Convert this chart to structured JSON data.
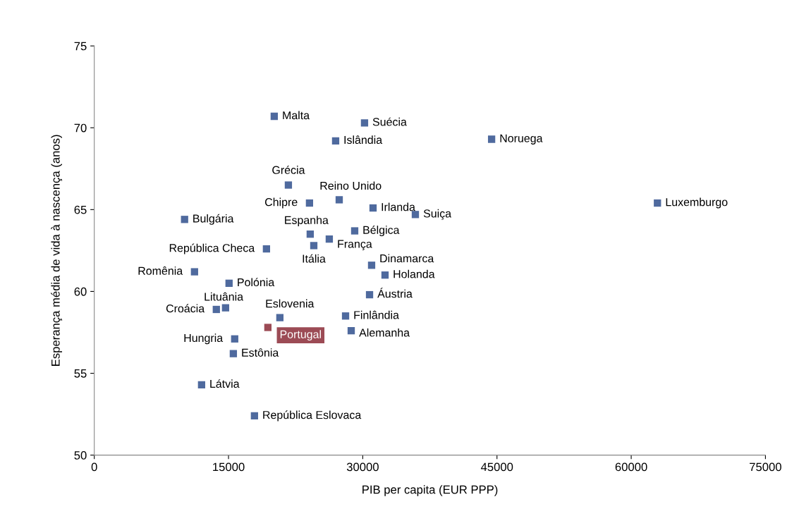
{
  "chart_data": {
    "type": "scatter",
    "xlabel": "PIB per capita (EUR PPP)",
    "ylabel": "Esperança média de vida à nascença (anos)",
    "x": [
      20110,
      30200,
      26970,
      44400,
      21690,
      27370,
      24050,
      31150,
      35880,
      62930,
      10090,
      24130,
      29100,
      26260,
      24530,
      19240,
      30990,
      32490,
      11200,
      15060,
      30760,
      14670,
      13640,
      20740,
      28080,
      19400,
      28710,
      15690,
      15540,
      11990,
      17900
    ],
    "values": [
      70.7,
      70.3,
      69.2,
      69.3,
      66.5,
      65.6,
      65.4,
      65.1,
      64.7,
      65.4,
      64.4,
      63.5,
      63.7,
      63.2,
      62.8,
      62.6,
      61.6,
      61.0,
      61.2,
      60.5,
      59.8,
      59.0,
      58.9,
      58.4,
      58.5,
      57.8,
      57.6,
      57.1,
      56.2,
      54.3,
      52.4
    ],
    "colors": [
      "#4f6a9e",
      "#4f6a9e",
      "#4f6a9e",
      "#4f6a9e",
      "#4f6a9e",
      "#4f6a9e",
      "#4f6a9e",
      "#4f6a9e",
      "#4f6a9e",
      "#4f6a9e",
      "#4f6a9e",
      "#4f6a9e",
      "#4f6a9e",
      "#4f6a9e",
      "#4f6a9e",
      "#4f6a9e",
      "#4f6a9e",
      "#4f6a9e",
      "#4f6a9e",
      "#4f6a9e",
      "#4f6a9e",
      "#4f6a9e",
      "#4f6a9e",
      "#4f6a9e",
      "#4f6a9e",
      "#9c4b55",
      "#4f6a9e",
      "#4f6a9e",
      "#4f6a9e",
      "#4f6a9e",
      "#4f6a9e"
    ],
    "annotations": [
      {
        "text": "Malta",
        "x": 20110,
        "y": 70.7
      },
      {
        "text": "Suécia",
        "x": 30200,
        "y": 70.3
      },
      {
        "text": "Islândia",
        "x": 26970,
        "y": 69.2
      },
      {
        "text": "Noruega",
        "x": 44400,
        "y": 69.3
      },
      {
        "text": "Grécia",
        "x": 21690,
        "y": 66.5
      },
      {
        "text": "Reino Unido",
        "x": 27370,
        "y": 65.6
      },
      {
        "text": "Chipre",
        "x": 24050,
        "y": 65.4
      },
      {
        "text": "Irlanda",
        "x": 31150,
        "y": 65.1
      },
      {
        "text": "Suiça",
        "x": 35880,
        "y": 64.7
      },
      {
        "text": "Luxemburgo",
        "x": 62930,
        "y": 65.4
      },
      {
        "text": "Bulgária",
        "x": 10090,
        "y": 64.4
      },
      {
        "text": "Espanha",
        "x": 24130,
        "y": 63.5
      },
      {
        "text": "Bélgica",
        "x": 29100,
        "y": 63.7
      },
      {
        "text": "França",
        "x": 26260,
        "y": 63.2
      },
      {
        "text": "Itália",
        "x": 24530,
        "y": 62.8
      },
      {
        "text": "República Checa",
        "x": 19240,
        "y": 62.6
      },
      {
        "text": "Dinamarca",
        "x": 30990,
        "y": 61.6
      },
      {
        "text": "Holanda",
        "x": 32490,
        "y": 61.0
      },
      {
        "text": "Romênia",
        "x": 11200,
        "y": 61.2
      },
      {
        "text": "Polónia",
        "x": 15060,
        "y": 60.5
      },
      {
        "text": "Áustria",
        "x": 30760,
        "y": 59.8
      },
      {
        "text": "Lituânia",
        "x": 14670,
        "y": 59.0
      },
      {
        "text": "Croácia",
        "x": 13640,
        "y": 58.9
      },
      {
        "text": "Eslovenia",
        "x": 20740,
        "y": 58.4
      },
      {
        "text": "Finlândia",
        "x": 28080,
        "y": 58.5
      },
      {
        "text": "Portugal",
        "x": 19400,
        "y": 57.8
      },
      {
        "text": "Alemanha",
        "x": 28710,
        "y": 57.6
      },
      {
        "text": "Hungria",
        "x": 15690,
        "y": 57.1
      },
      {
        "text": "Estônia",
        "x": 15540,
        "y": 56.2
      },
      {
        "text": "Látvia",
        "x": 11990,
        "y": 54.3
      },
      {
        "text": "República Eslovaca",
        "x": 17900,
        "y": 52.4
      }
    ],
    "marker": "square",
    "xlim": [
      0,
      75000
    ],
    "xticks": [
      0,
      15000,
      30000,
      45000,
      60000,
      75000
    ],
    "ylim": [
      50,
      75
    ],
    "yticks": [
      50,
      55,
      60,
      65,
      70,
      75
    ]
  }
}
